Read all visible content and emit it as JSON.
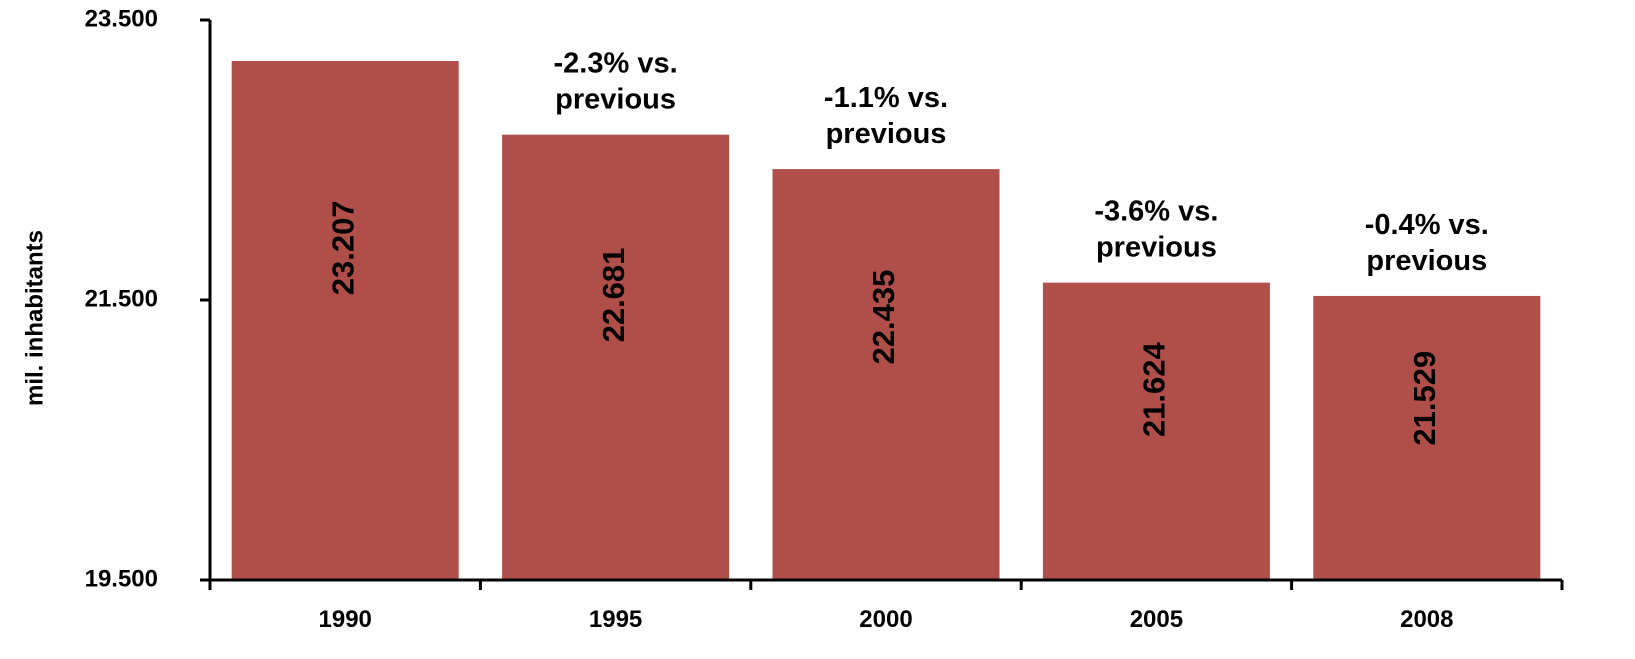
{
  "chart_data": {
    "type": "bar",
    "title": "",
    "xlabel": "",
    "ylabel": "mil. inhabitants",
    "categories": [
      "1990",
      "1995",
      "2000",
      "2005",
      "2008"
    ],
    "values": [
      23.207,
      22.681,
      22.435,
      21.624,
      21.529
    ],
    "value_labels": [
      "23.207",
      "22.681",
      "22.435",
      "21.624",
      "21.529"
    ],
    "annotations": [
      "",
      "-2.3% vs. previous",
      "-1.1% vs. previous",
      "-3.6% vs. previous",
      "-0.4% vs. previous"
    ],
    "annotation_lines": [
      [],
      [
        "-2.3% vs.",
        "previous"
      ],
      [
        "-1.1% vs.",
        "previous"
      ],
      [
        "-3.6% vs.",
        "previous"
      ],
      [
        "-0.4% vs.",
        "previous"
      ]
    ],
    "ylim": [
      19.5,
      23.5
    ],
    "yticks": [
      19.5,
      21.5,
      23.5
    ],
    "ytick_labels": [
      "19.500",
      "21.500",
      "23.500"
    ],
    "grid": false,
    "legend": "none",
    "colors": {
      "bar": "#B04E49",
      "axis": "#000000",
      "text": "#000000"
    }
  }
}
